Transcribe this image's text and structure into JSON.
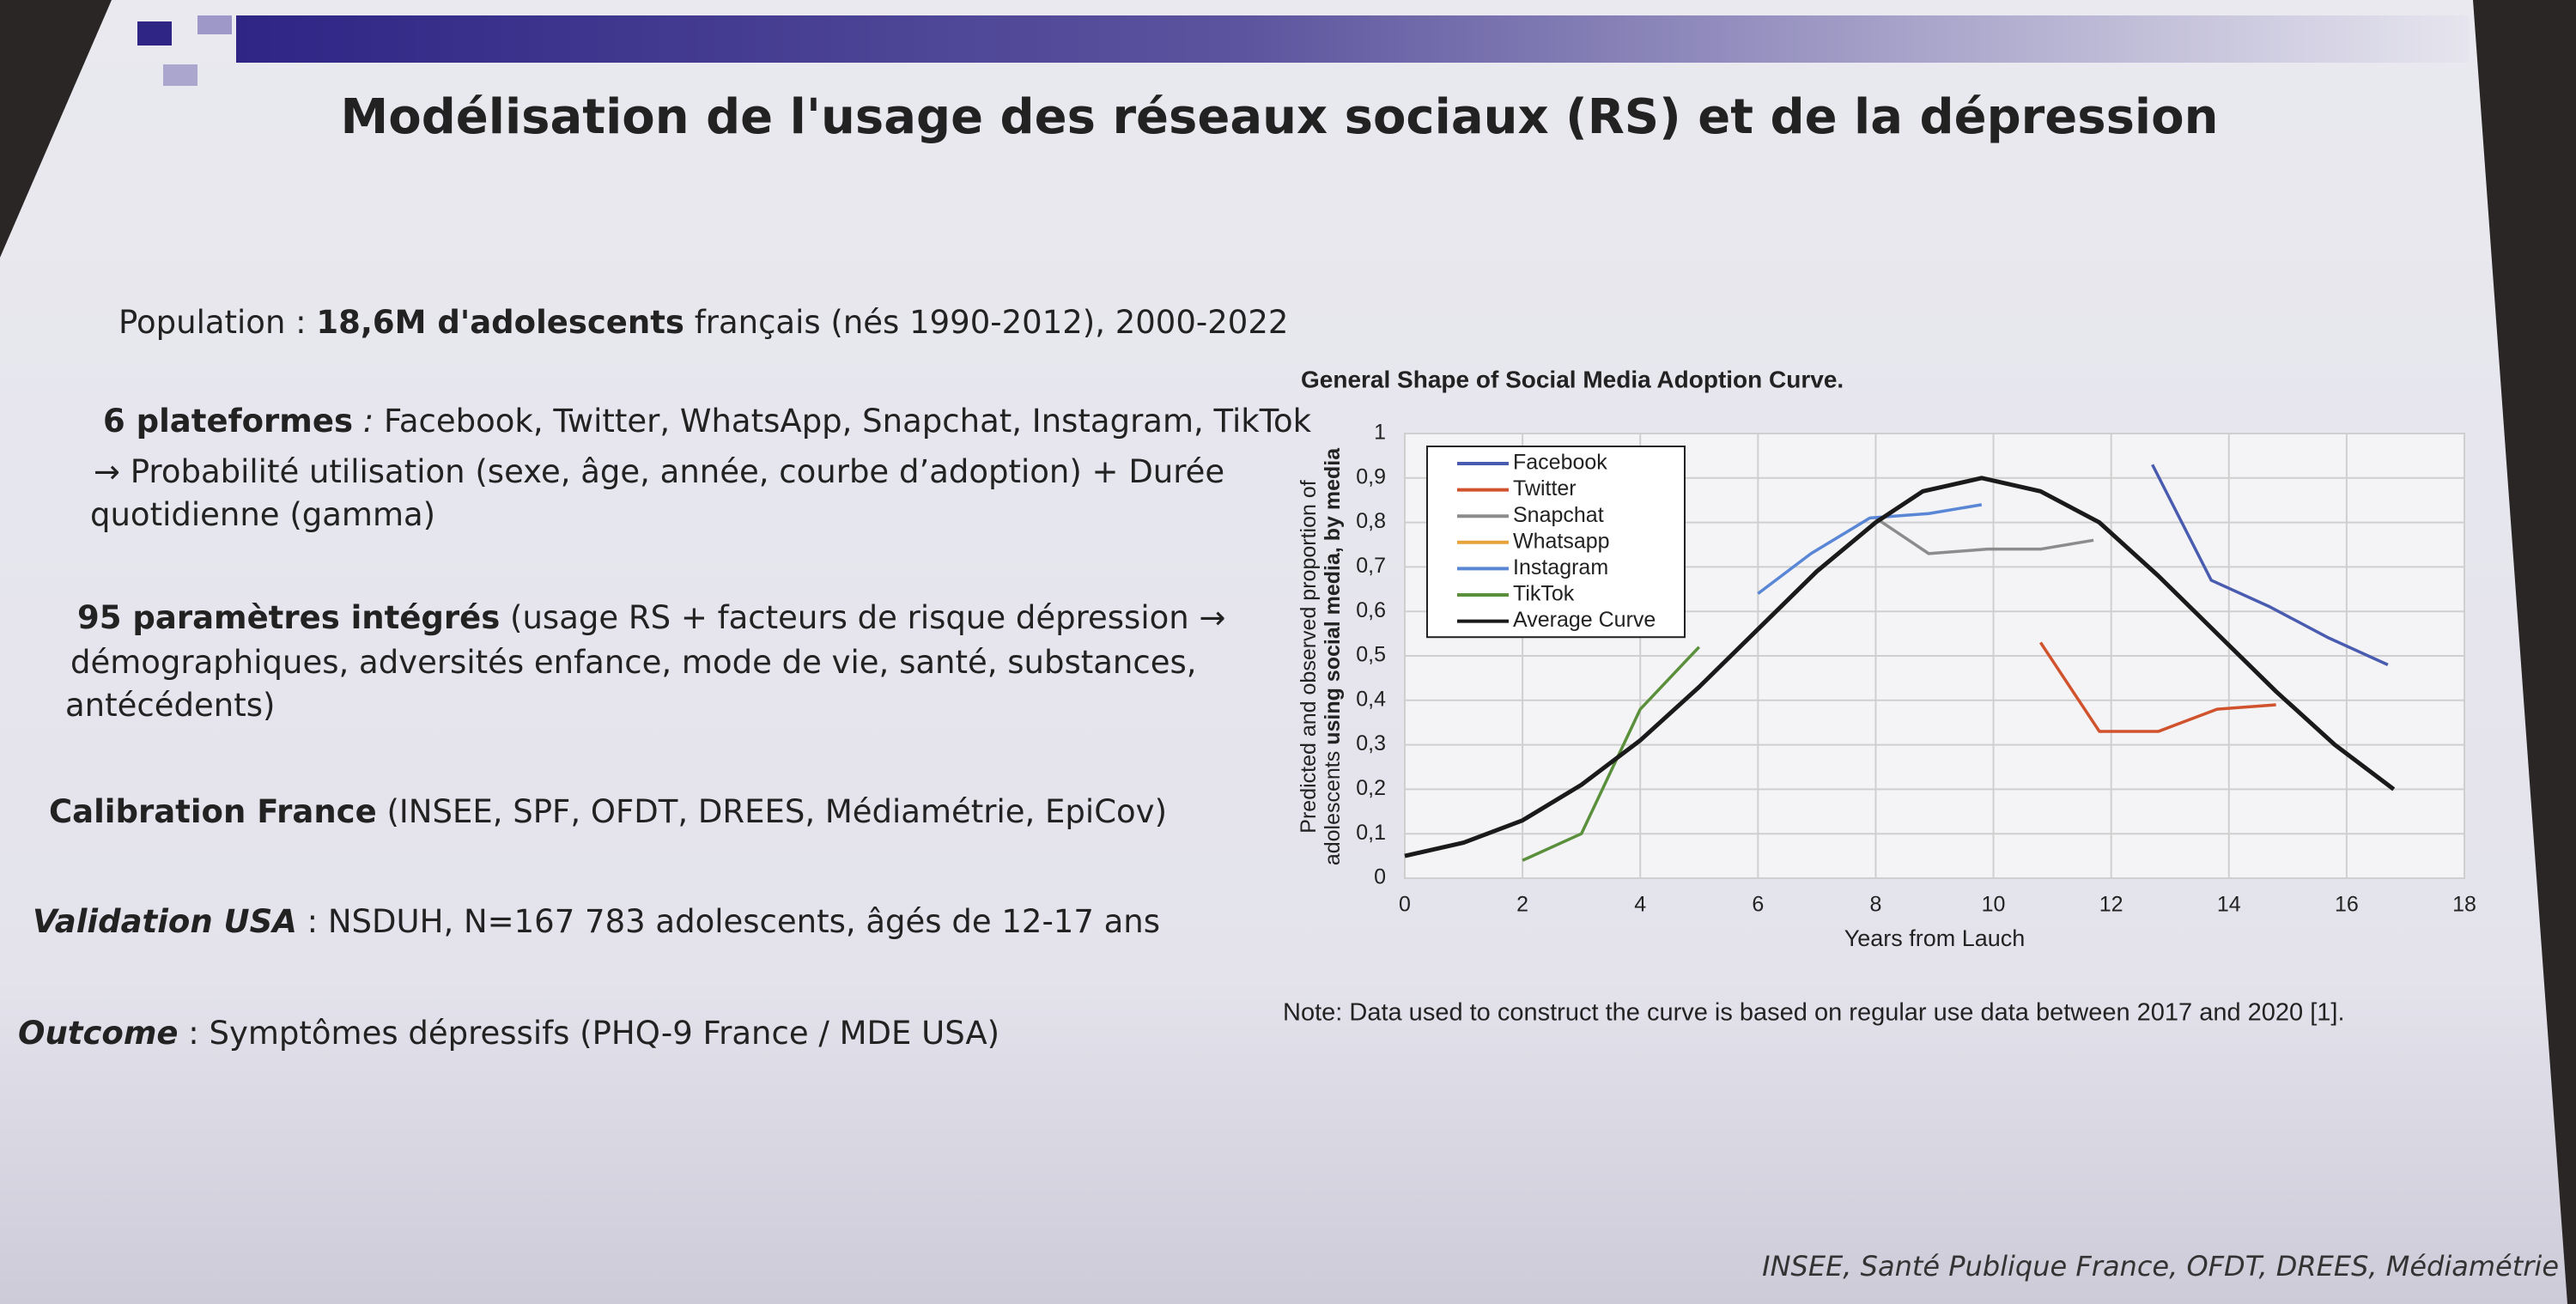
{
  "slide": {
    "title": "Modélisation de l'usage des réseaux sociaux (RS) et de la dépression",
    "bullets": [
      [
        [
          {
            "text": "Population : ",
            "style": "normal"
          },
          {
            "text": "18,6M d'adolescents",
            "style": "bold"
          },
          {
            "text": " français (nés 1990-2012), 2000-2022",
            "style": "normal"
          }
        ]
      ],
      [
        [
          {
            "text": "6 plateformes",
            "style": "bold"
          },
          {
            "text": " :",
            "style": "italic"
          },
          {
            "text": " Facebook, Twitter, WhatsApp, Snapchat, Instagram, TikTok",
            "style": "normal"
          }
        ],
        [
          {
            "text": "→ Probabilité utilisation (sexe, âge, année, courbe d’adoption) + Durée",
            "style": "normal"
          }
        ],
        [
          {
            "text": "quotidienne (gamma)",
            "style": "normal"
          }
        ]
      ],
      [
        [
          {
            "text": "95 paramètres intégrés",
            "style": "bold"
          },
          {
            "text": " (usage RS + facteurs de risque dépression →",
            "style": "normal"
          }
        ],
        [
          {
            "text": "démographiques, adversités enfance, mode de vie, santé, substances,",
            "style": "normal"
          }
        ],
        [
          {
            "text": "antécédents)",
            "style": "normal"
          }
        ]
      ],
      [
        [
          {
            "text": "Calibration France",
            "style": "bold"
          },
          {
            "text": " (INSEE, SPF, OFDT, DREES, Médiamétrie, EpiCov)",
            "style": "normal"
          }
        ]
      ],
      [
        [
          {
            "text": "Validation USA",
            "style": "bolditalic"
          },
          {
            "text": " : NSDUH, N=167 783 adolescents, âgés de 12-17 ans",
            "style": "normal"
          }
        ]
      ],
      [
        [
          {
            "text": "Outcome",
            "style": "bolditalic"
          },
          {
            "text": " : Symptômes dépressifs (PHQ-9 France / MDE USA)",
            "style": "normal"
          }
        ]
      ]
    ],
    "footer": "INSEE, Santé Publique France, OFDT, DREES, Médiamétrie"
  },
  "chart_data": {
    "type": "line",
    "title": "General Shape of Social Media Adoption Curve.",
    "y_label": [
      [
        {
          "text": "Predicted and observed proportion of",
          "style": "normal"
        }
      ],
      [
        {
          "text": "adolescents ",
          "style": "normal"
        },
        {
          "text": "using social media, by media",
          "style": "bold"
        }
      ]
    ],
    "x_label": "Years from Lauch",
    "note": "Note: Data used to construct the curve is based on regular use data between 2017 and 2020 [1].",
    "xlim": [
      0,
      18
    ],
    "xticks": [
      0,
      2,
      4,
      6,
      8,
      10,
      12,
      14,
      16,
      18
    ],
    "ylim": [
      0,
      1
    ],
    "yticks": [
      0,
      {
        "value": 0.1,
        "label": "0,1"
      },
      {
        "value": 0.2,
        "label": "0,2"
      },
      {
        "value": 0.3,
        "label": "0,3"
      },
      {
        "value": 0.4,
        "label": "0,4"
      },
      {
        "value": 0.5,
        "label": "0,5"
      },
      {
        "value": 0.6,
        "label": "0,6"
      },
      {
        "value": 0.7,
        "label": "0,7"
      },
      {
        "value": 0.8,
        "label": "0,8"
      },
      {
        "value": 0.9,
        "label": "0,9"
      },
      1
    ],
    "grid": true,
    "legend": "upper left",
    "series": [
      {
        "name": "Facebook",
        "color": "#4a5cb0",
        "x": [
          12.7,
          13.7,
          14.7,
          15.7,
          16.7
        ],
        "values": [
          0.93,
          0.67,
          0.61,
          0.54,
          0.48
        ]
      },
      {
        "name": "Twitter",
        "color": "#d0532e",
        "x": [
          10.8,
          11.8,
          12.8,
          13.8,
          14.8
        ],
        "values": [
          0.53,
          0.33,
          0.33,
          0.38,
          0.39
        ]
      },
      {
        "name": "Snapchat",
        "color": "#8c8c8c",
        "x": [
          8,
          8.9,
          9.9,
          10.8,
          11.7
        ],
        "values": [
          0.81,
          0.73,
          0.74,
          0.74,
          0.76
        ]
      },
      {
        "name": "Whatsapp",
        "color": "#e8a33a",
        "x": [],
        "values": []
      },
      {
        "name": "Instagram",
        "color": "#5a86d6",
        "x": [
          6,
          6.9,
          7.9,
          8.9,
          9.8
        ],
        "values": [
          0.64,
          0.73,
          0.81,
          0.82,
          0.84
        ]
      },
      {
        "name": "TikTok",
        "color": "#5a8f3c",
        "x": [
          2,
          3,
          4,
          5
        ],
        "values": [
          0.04,
          0.1,
          0.38,
          0.52
        ]
      },
      {
        "name": "Average Curve",
        "color": "#1a1a1a",
        "x": [
          0,
          1,
          2,
          3,
          4,
          5,
          6,
          7,
          8,
          8.8,
          9.8,
          10.8,
          11.8,
          12.8,
          13.8,
          14.8,
          15.8,
          16.8
        ],
        "values": [
          0.05,
          0.08,
          0.13,
          0.21,
          0.31,
          0.43,
          0.56,
          0.69,
          0.8,
          0.87,
          0.9,
          0.87,
          0.8,
          0.68,
          0.55,
          0.42,
          0.3,
          0.2
        ]
      }
    ]
  }
}
